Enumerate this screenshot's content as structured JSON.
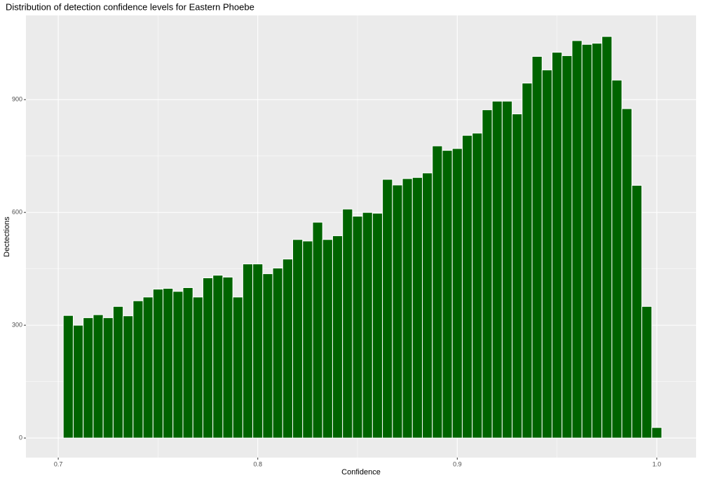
{
  "chart_data": {
    "type": "histogram",
    "title": "Distribution of detection confidence levels for Eastern Phoebe",
    "x_label": "Confidence",
    "y_label": "Dectections",
    "bins": [
      0.7025,
      0.7075,
      0.7125,
      0.7175,
      0.7225,
      0.7275,
      0.7325,
      0.7375,
      0.7425,
      0.7475,
      0.7525,
      0.7575,
      0.7625,
      0.7675,
      0.7725,
      0.7775,
      0.7825,
      0.7875,
      0.7925,
      0.7975,
      0.8025,
      0.8075,
      0.8125,
      0.8175,
      0.8225,
      0.8275,
      0.8325,
      0.8375,
      0.8425,
      0.8475,
      0.8525,
      0.8575,
      0.8625,
      0.8675,
      0.8725,
      0.8775,
      0.8825,
      0.8875,
      0.8925,
      0.8975,
      0.9025,
      0.9075,
      0.9125,
      0.9175,
      0.9225,
      0.9275,
      0.9325,
      0.9375,
      0.9425,
      0.9475,
      0.9525,
      0.9575,
      0.9625,
      0.9675,
      0.9725,
      0.9775,
      0.9825,
      0.9875,
      0.9925,
      0.9975,
      1.0025
    ],
    "values": [
      326,
      300,
      320,
      328,
      320,
      350,
      325,
      365,
      375,
      396,
      398,
      390,
      400,
      375,
      426,
      433,
      428,
      375,
      463,
      463,
      437,
      452,
      476,
      528,
      524,
      574,
      528,
      538,
      609,
      590,
      600,
      598,
      688,
      673,
      690,
      693,
      705,
      777,
      765,
      770,
      805,
      811,
      873,
      896,
      896,
      862,
      944,
      1015,
      979,
      1026,
      1017,
      1057,
      1047,
      1050,
      1068,
      952,
      876,
      672,
      350,
      28
    ],
    "color": "#006400",
    "xlim": [
      0.6838,
      1.0197
    ],
    "ylim": [
      -52,
      1124
    ],
    "xticks": [
      0.7,
      0.8,
      0.9,
      {
        "value": 1.0,
        "label": "1.0"
      }
    ],
    "yticks": [
      0,
      300,
      600,
      900
    ],
    "grid": true
  }
}
